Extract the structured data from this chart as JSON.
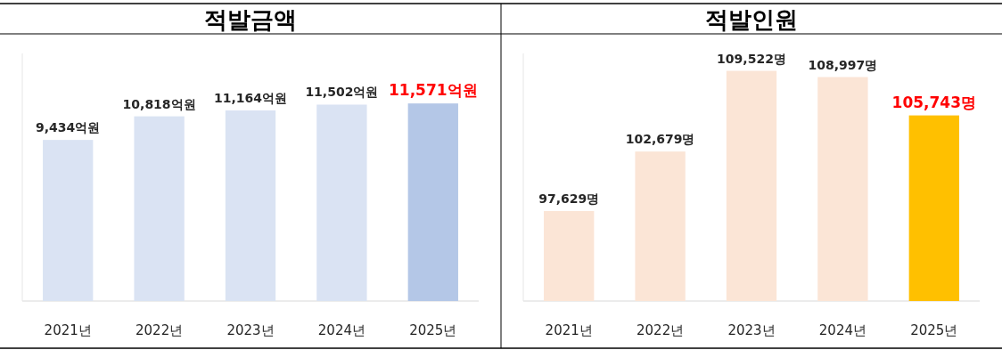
{
  "chart_data": [
    {
      "type": "bar",
      "title": "적발금액",
      "categories": [
        "2021년",
        "2022년",
        "2023년",
        "2024년",
        "2025년"
      ],
      "values": [
        9434,
        10818,
        11164,
        11502,
        11571
      ],
      "value_labels": [
        "9,434억원",
        "10,818억원",
        "11,164억원",
        "11,502억원",
        "11,571억원"
      ],
      "colors": [
        "#dae3f3",
        "#dae3f3",
        "#dae3f3",
        "#dae3f3",
        "#b4c7e7"
      ],
      "ylim": [
        0,
        14500
      ],
      "tick_labels": "x"
    },
    {
      "type": "bar",
      "title": "적발인원",
      "categories": [
        "2021년",
        "2022년",
        "2023년",
        "2024년",
        "2025년"
      ],
      "values": [
        97629,
        102679,
        109522,
        108997,
        105743
      ],
      "value_labels": [
        "97,629명",
        "102,679명",
        "109,522명",
        "108,997명",
        "105,743명"
      ],
      "colors": [
        "#fbe5d6",
        "#fbe5d6",
        "#fbe5d6",
        "#fbe5d6",
        "#ffc000"
      ],
      "ylim": [
        90000,
        111000
      ],
      "tick_labels": "x"
    }
  ]
}
